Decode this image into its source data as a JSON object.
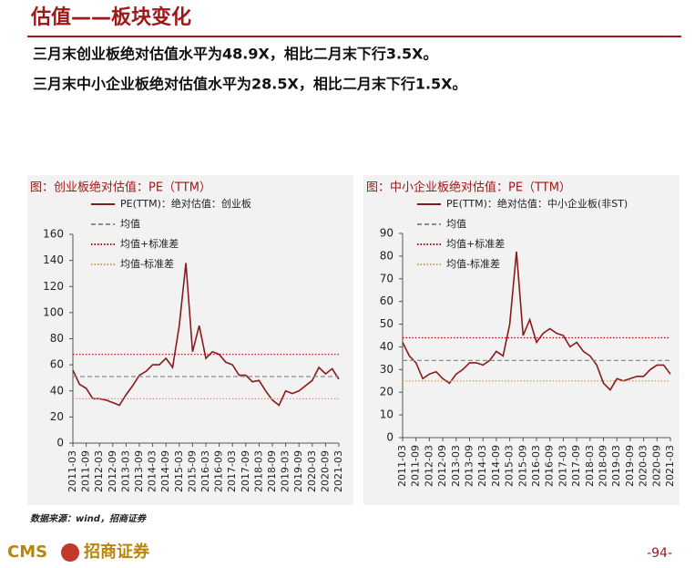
{
  "header": {
    "title": "估值——板块变化",
    "bullets": [
      "三月末创业板绝对估值水平为48.9X，相比二月末下行3.5X。",
      "三月末中小企业板绝对估值水平为28.5X，相比二月末下行1.5X。"
    ]
  },
  "chart_data": [
    {
      "type": "line",
      "title": "图：创业板绝对估值：PE（TTM）",
      "x": [
        "2011-03",
        "2011-06",
        "2011-09",
        "2011-12",
        "2012-03",
        "2012-06",
        "2012-09",
        "2012-12",
        "2013-03",
        "2013-06",
        "2013-09",
        "2013-12",
        "2014-03",
        "2014-06",
        "2014-09",
        "2014-12",
        "2015-03",
        "2015-06",
        "2015-09",
        "2015-12",
        "2016-03",
        "2016-06",
        "2016-09",
        "2016-12",
        "2017-03",
        "2017-06",
        "2017-09",
        "2017-12",
        "2018-03",
        "2018-06",
        "2018-09",
        "2018-12",
        "2019-03",
        "2019-06",
        "2019-09",
        "2019-12",
        "2020-03",
        "2020-06",
        "2020-09",
        "2020-12",
        "2021-03"
      ],
      "xticks": [
        "2011-03",
        "2011-09",
        "2012-03",
        "2012-09",
        "2013-03",
        "2013-09",
        "2014-03",
        "2014-09",
        "2015-03",
        "2015-09",
        "2016-03",
        "2016-09",
        "2017-03",
        "2017-09",
        "2018-03",
        "2018-09",
        "2019-03",
        "2019-09",
        "2020-03",
        "2020-09",
        "2021-03"
      ],
      "ylim": [
        0,
        160
      ],
      "yticks": [
        0,
        20,
        40,
        60,
        80,
        100,
        120,
        140,
        160
      ],
      "series": [
        {
          "name": "PE(TTM)：绝对估值：创业板",
          "color": "#8b1a1a",
          "values": [
            56,
            45,
            42,
            34,
            34,
            33,
            31,
            29,
            37,
            44,
            52,
            55,
            60,
            60,
            65,
            58,
            90,
            138,
            70,
            90,
            65,
            70,
            68,
            62,
            60,
            52,
            52,
            47,
            48,
            40,
            33,
            29,
            40,
            38,
            40,
            44,
            48,
            58,
            53,
            57,
            49
          ]
        },
        {
          "name": "均值",
          "color": "#8c8c8c",
          "style": "dashed",
          "value": 51
        },
        {
          "name": "均值+标准差",
          "color": "#c00000",
          "style": "dotted",
          "value": 68
        },
        {
          "name": "均值-标准差",
          "color": "#e0a030",
          "style": "dotted",
          "value": 34
        }
      ]
    },
    {
      "type": "line",
      "title": "图：中小企业板绝对估值：PE（TTM）",
      "x": [
        "2011-03",
        "2011-06",
        "2011-09",
        "2011-12",
        "2012-03",
        "2012-06",
        "2012-09",
        "2012-12",
        "2013-03",
        "2013-06",
        "2013-09",
        "2013-12",
        "2014-03",
        "2014-06",
        "2014-09",
        "2014-12",
        "2015-03",
        "2015-06",
        "2015-09",
        "2015-12",
        "2016-03",
        "2016-06",
        "2016-09",
        "2016-12",
        "2017-03",
        "2017-06",
        "2017-09",
        "2017-12",
        "2018-03",
        "2018-06",
        "2018-09",
        "2018-12",
        "2019-03",
        "2019-06",
        "2019-09",
        "2019-12",
        "2020-03",
        "2020-06",
        "2020-09",
        "2020-12",
        "2021-03"
      ],
      "xticks": [
        "2011-03",
        "2011-09",
        "2012-03",
        "2012-09",
        "2013-03",
        "2013-09",
        "2014-03",
        "2014-09",
        "2015-03",
        "2015-09",
        "2016-03",
        "2016-09",
        "2017-03",
        "2017-09",
        "2018-03",
        "2018-09",
        "2019-03",
        "2019-09",
        "2020-03",
        "2020-09",
        "2021-03"
      ],
      "ylim": [
        0,
        90
      ],
      "yticks": [
        0,
        10,
        20,
        30,
        40,
        50,
        60,
        70,
        80,
        90
      ],
      "series": [
        {
          "name": "PE(TTM)：绝对估值：中小企业板(非ST)",
          "color": "#8b1a1a",
          "values": [
            42,
            36,
            33,
            26,
            28,
            29,
            26,
            24,
            28,
            30,
            33,
            33,
            32,
            34,
            38,
            36,
            50,
            82,
            45,
            52,
            42,
            46,
            48,
            46,
            45,
            40,
            42,
            38,
            36,
            32,
            24,
            21,
            26,
            25,
            26,
            27,
            27,
            30,
            32,
            32,
            28
          ]
        },
        {
          "name": "均值",
          "color": "#8c8c8c",
          "style": "dashed",
          "value": 34
        },
        {
          "name": "均值+标准差",
          "color": "#c00000",
          "style": "dotted",
          "value": 44
        },
        {
          "name": "均值-标准差",
          "color": "#e0a030",
          "style": "dotted",
          "value": 25
        }
      ]
    }
  ],
  "source": "数据来源：wind，招商证券",
  "logo": {
    "latin": "CMS",
    "chinese": "招商证券"
  },
  "page_number": "-94-"
}
